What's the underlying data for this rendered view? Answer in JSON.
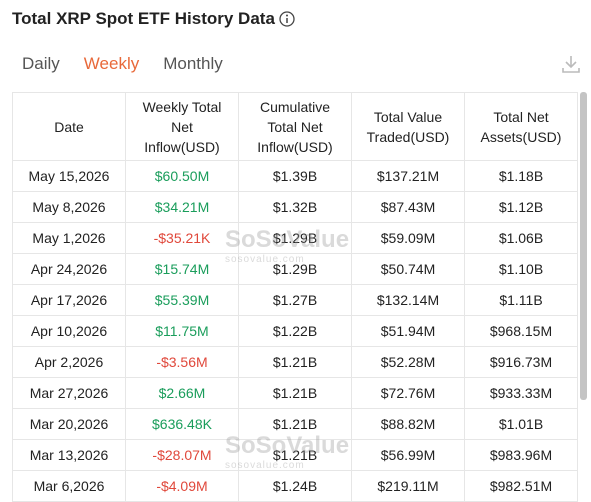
{
  "header": {
    "title": "Total XRP Spot ETF History Data"
  },
  "tabs": [
    "Daily",
    "Weekly",
    "Monthly"
  ],
  "active_tab": 1,
  "watermark": {
    "brand": "SoSoValue",
    "site": "sosovalue.com"
  },
  "table": {
    "columns": [
      "Date",
      "Weekly Total Net Inflow(USD)",
      "Cumulative Total Net Inflow(USD)",
      "Total Value Traded(USD)",
      "Total Net Assets(USD)"
    ],
    "rows": [
      [
        "May 15,2026",
        "$60.50M",
        "$1.39B",
        "$137.21M",
        "$1.18B"
      ],
      [
        "May 8,2026",
        "$34.21M",
        "$1.32B",
        "$87.43M",
        "$1.12B"
      ],
      [
        "May 1,2026",
        "-$35.21K",
        "$1.29B",
        "$59.09M",
        "$1.06B"
      ],
      [
        "Apr 24,2026",
        "$15.74M",
        "$1.29B",
        "$50.74M",
        "$1.10B"
      ],
      [
        "Apr 17,2026",
        "$55.39M",
        "$1.27B",
        "$132.14M",
        "$1.11B"
      ],
      [
        "Apr 10,2026",
        "$11.75M",
        "$1.22B",
        "$51.94M",
        "$968.15M"
      ],
      [
        "Apr 2,2026",
        "-$3.56M",
        "$1.21B",
        "$52.28M",
        "$916.73M"
      ],
      [
        "Mar 27,2026",
        "$2.66M",
        "$1.21B",
        "$72.76M",
        "$933.33M"
      ],
      [
        "Mar 20,2026",
        "$636.48K",
        "$1.21B",
        "$88.82M",
        "$1.01B"
      ],
      [
        "Mar 13,2026",
        "-$28.07M",
        "$1.21B",
        "$56.99M",
        "$983.96M"
      ],
      [
        "Mar 6,2026",
        "-$4.09M",
        "$1.24B",
        "$219.11M",
        "$982.51M"
      ]
    ]
  }
}
